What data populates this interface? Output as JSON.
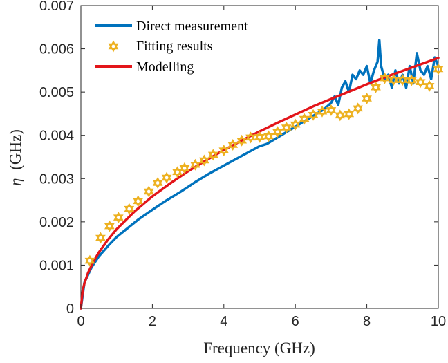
{
  "chart_data": {
    "type": "line",
    "xlabel": "Frequency (GHz)",
    "ylabel_symbol": "η",
    "ylabel_unit": "(GHz)",
    "xlim": [
      0,
      10
    ],
    "ylim": [
      0,
      0.007
    ],
    "x_ticks": [
      0,
      2,
      4,
      6,
      8,
      10
    ],
    "x_tick_labels": [
      "0",
      "2",
      "4",
      "6",
      "8",
      "10"
    ],
    "y_ticks": [
      0,
      0.001,
      0.002,
      0.003,
      0.004,
      0.005,
      0.006,
      0.007
    ],
    "y_tick_labels": [
      "0",
      "0.001",
      "0.002",
      "0.003",
      "0.004",
      "0.005",
      "0.006",
      "0.007"
    ],
    "grid": false,
    "legend_position": "top-left",
    "series": [
      {
        "name": "Direct measurement",
        "kind": "line",
        "color": "#0072BD",
        "x": [
          0,
          0.1,
          0.3,
          0.5,
          0.8,
          1.0,
          1.3,
          1.6,
          2.0,
          2.4,
          2.8,
          3.2,
          3.6,
          4.0,
          4.4,
          4.8,
          5.0,
          5.2,
          5.4,
          5.6,
          5.8,
          6.0,
          6.2,
          6.4,
          6.6,
          6.8,
          7.0,
          7.1,
          7.2,
          7.3,
          7.4,
          7.5,
          7.6,
          7.7,
          7.8,
          7.9,
          8.0,
          8.1,
          8.2,
          8.3,
          8.35,
          8.4,
          8.5,
          8.6,
          8.7,
          8.8,
          8.9,
          9.0,
          9.1,
          9.2,
          9.3,
          9.4,
          9.5,
          9.6,
          9.7,
          9.8,
          9.9,
          10.0
        ],
        "y": [
          0,
          0.0006,
          0.00095,
          0.0012,
          0.00148,
          0.00165,
          0.00185,
          0.00205,
          0.00228,
          0.0025,
          0.0027,
          0.00292,
          0.00312,
          0.0033,
          0.00348,
          0.00366,
          0.00375,
          0.0038,
          0.0039,
          0.004,
          0.0041,
          0.0042,
          0.0043,
          0.0044,
          0.0045,
          0.0046,
          0.00475,
          0.0049,
          0.0047,
          0.0051,
          0.00525,
          0.005,
          0.0054,
          0.0053,
          0.0055,
          0.0054,
          0.0056,
          0.0052,
          0.0055,
          0.0057,
          0.0062,
          0.0056,
          0.0053,
          0.0054,
          0.0051,
          0.0055,
          0.0052,
          0.0054,
          0.0051,
          0.0056,
          0.0052,
          0.0059,
          0.0055,
          0.0054,
          0.0056,
          0.0053,
          0.0058,
          0.0056
        ]
      },
      {
        "name": "Fitting results",
        "kind": "marker",
        "color": "#EDB120",
        "x": [
          0.25,
          0.55,
          0.8,
          1.05,
          1.35,
          1.6,
          1.9,
          2.15,
          2.4,
          2.7,
          2.9,
          3.2,
          3.45,
          3.7,
          4.0,
          4.25,
          4.5,
          4.75,
          5.0,
          5.25,
          5.5,
          5.75,
          6.0,
          6.25,
          6.5,
          6.75,
          7.0,
          7.25,
          7.5,
          7.75,
          8.0,
          8.25,
          8.5,
          8.75,
          9.0,
          9.25,
          9.5,
          9.75,
          10.0
        ],
        "y": [
          0.0011,
          0.00163,
          0.0019,
          0.0021,
          0.0023,
          0.00248,
          0.0027,
          0.0029,
          0.00302,
          0.00315,
          0.00324,
          0.00332,
          0.00342,
          0.00355,
          0.00365,
          0.00378,
          0.00388,
          0.00395,
          0.00396,
          0.00398,
          0.00408,
          0.00418,
          0.00425,
          0.00438,
          0.00447,
          0.00455,
          0.00458,
          0.00446,
          0.00449,
          0.00462,
          0.00485,
          0.00511,
          0.00532,
          0.00528,
          0.00528,
          0.00527,
          0.00523,
          0.00514,
          0.00553
        ]
      },
      {
        "name": "Modelling",
        "kind": "line",
        "color": "#E3151A",
        "model": "y = 0.00183 * x^0.5",
        "x": [
          0,
          0.05,
          0.1,
          0.2,
          0.35,
          0.5,
          0.75,
          1.0,
          1.5,
          2.0,
          2.5,
          3.0,
          3.5,
          4.0,
          4.5,
          5.0,
          5.5,
          6.0,
          6.5,
          7.0,
          7.5,
          8.0,
          8.5,
          9.0,
          9.5,
          10.0
        ],
        "y": [
          0,
          0.00041,
          0.00058,
          0.00082,
          0.00108,
          0.00129,
          0.00158,
          0.00183,
          0.00224,
          0.00259,
          0.00289,
          0.00317,
          0.00342,
          0.00366,
          0.00388,
          0.00409,
          0.00429,
          0.00448,
          0.00467,
          0.00484,
          0.00501,
          0.00518,
          0.00534,
          0.00549,
          0.00564,
          0.00579
        ]
      }
    ]
  }
}
